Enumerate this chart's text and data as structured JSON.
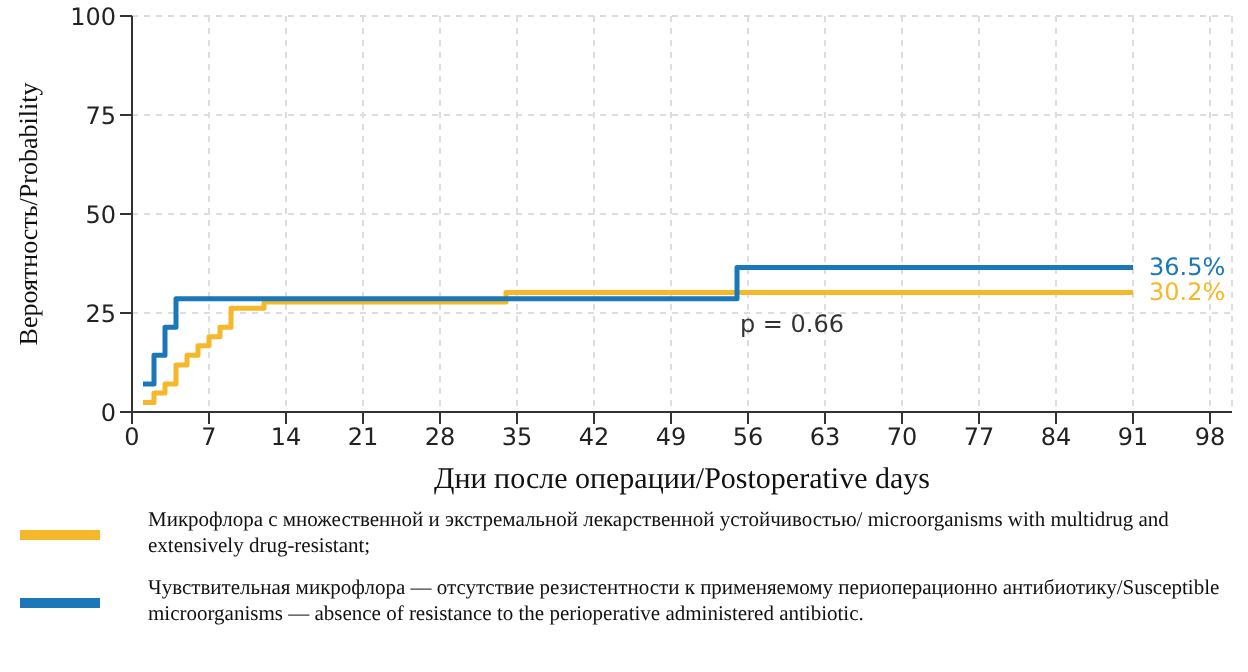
{
  "chart_data": {
    "type": "step",
    "xlabel": "Дни после операции/Postoperative days",
    "ylabel": "Вероятность/Probability",
    "xlim": [
      0,
      100
    ],
    "xticks": [
      0,
      7,
      14,
      21,
      28,
      35,
      42,
      49,
      56,
      63,
      70,
      77,
      84,
      91,
      98
    ],
    "ylim": [
      0,
      100
    ],
    "yticks": [
      0,
      25,
      50,
      75,
      100
    ],
    "grid": true,
    "legend": "bottom",
    "marker": "none",
    "line_style": "solid",
    "series": [
      {
        "name": "Микрофлора с множественной и экстремальной лекарственной устойчивостью/ microorganisms with multidrug and extensively drug-resistant;",
        "color": "#f5b82a",
        "x": [
          1,
          2,
          3,
          4,
          5,
          6,
          7,
          8,
          9,
          12,
          34,
          91
        ],
        "values": [
          2.4,
          4.8,
          7.1,
          11.9,
          14.3,
          16.7,
          19.0,
          21.4,
          26.2,
          27.8,
          30.2,
          30.2
        ],
        "value_labels": [
          null,
          null,
          null,
          null,
          null,
          null,
          null,
          null,
          null,
          null,
          null,
          "30.2%"
        ]
      },
      {
        "name": "Чувствительная микрофлора — отсутствие резистентности к применяемому периоперационно антибиотику/Susceptible microorganisms — absence of resistance to the perioperative administered antibiotic.",
        "color": "#1a78b8",
        "x": [
          1,
          2,
          3,
          4,
          55,
          91
        ],
        "values": [
          7.1,
          14.3,
          21.4,
          28.6,
          36.5,
          36.5
        ],
        "value_labels": [
          null,
          null,
          null,
          null,
          null,
          "36.5%"
        ]
      }
    ],
    "annotations": [
      "p = 0.66"
    ]
  }
}
